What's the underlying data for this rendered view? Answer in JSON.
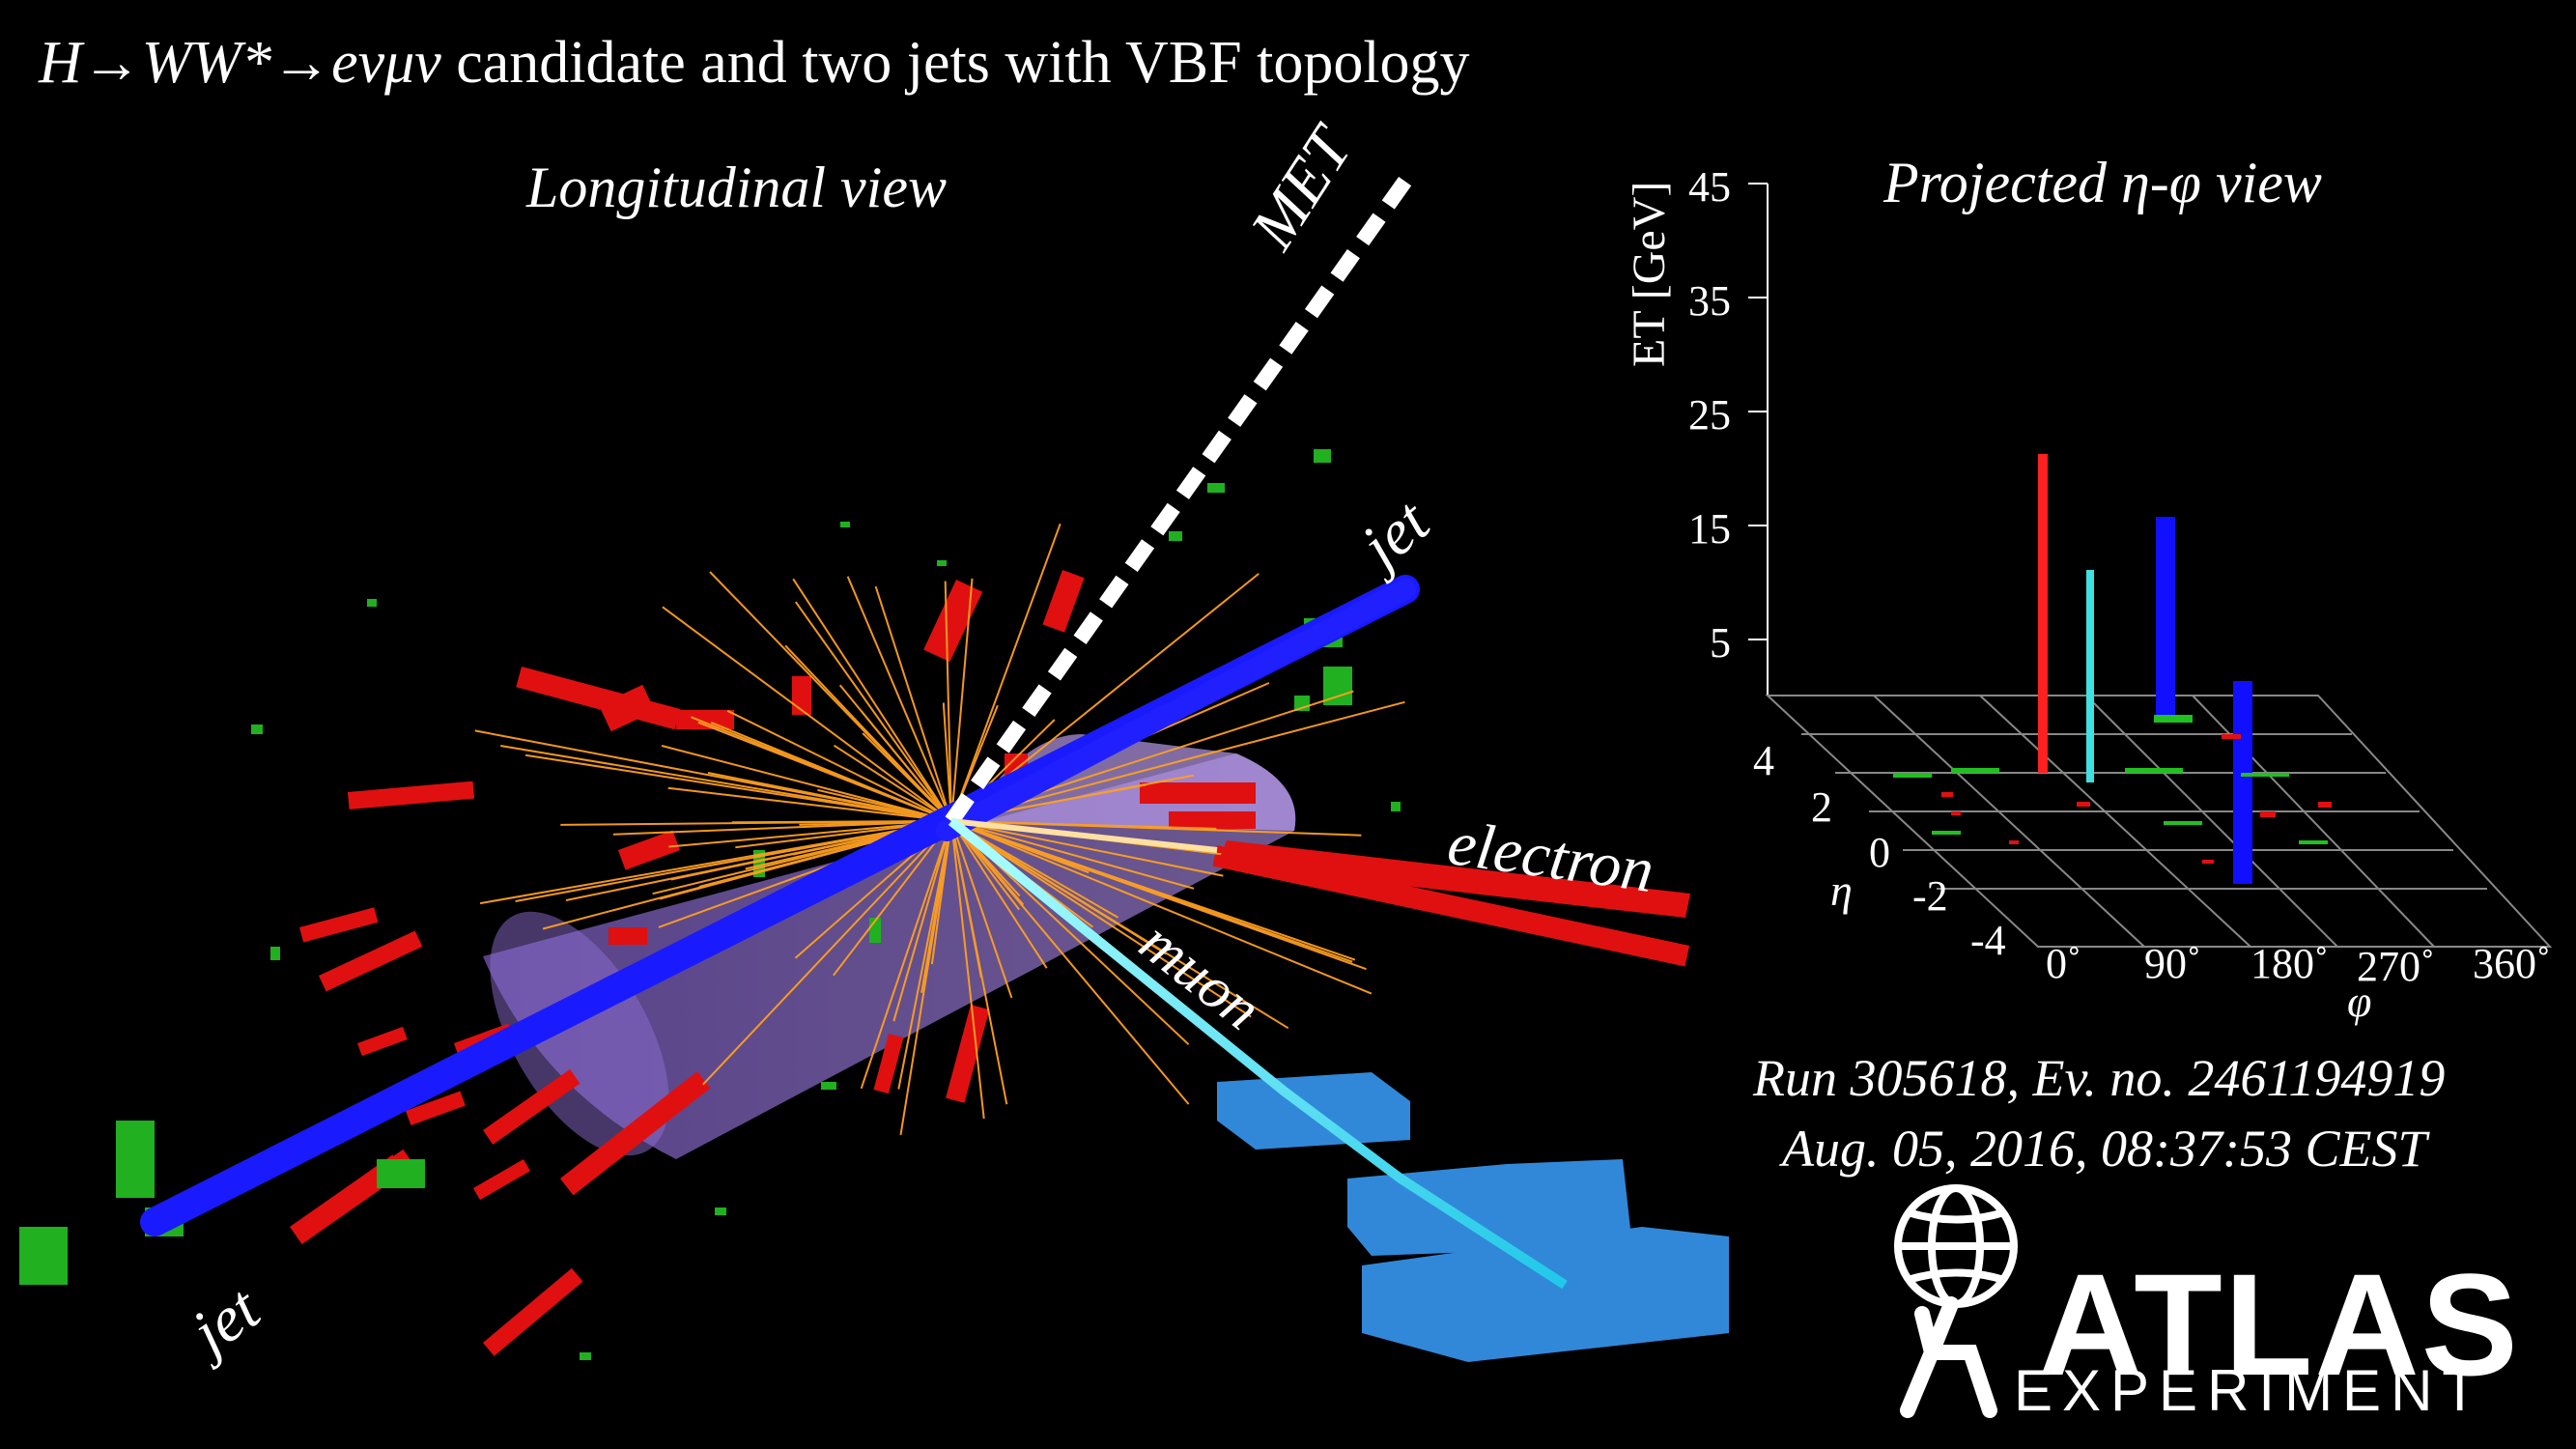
{
  "title": {
    "formula": "H→WW*→eνμν",
    "rest": " candidate and two jets with VBF topology"
  },
  "views": {
    "longitudinal": "Longitudinal view",
    "projected": "Projected  η-φ view"
  },
  "labels": {
    "met": "MET",
    "jet_top": "jet",
    "jet_bottom": "jet",
    "electron": "electron",
    "muon": "muon"
  },
  "lego_plot": {
    "y_axis_label": "ET [GeV]",
    "y_ticks": [
      "45",
      "35",
      "25",
      "15",
      "5"
    ],
    "eta_label": "η",
    "eta_ticks": [
      "4",
      "2",
      "0",
      "-2",
      "-4"
    ],
    "phi_label": "φ",
    "phi_ticks": [
      "0˚",
      "90˚",
      "180˚",
      "270˚",
      "360˚"
    ],
    "colors": {
      "electron": "#ff2020",
      "muon": "#40e0e0",
      "jet": "#1010ff",
      "cells_em": "#20c020",
      "cells_had": "#e01010"
    }
  },
  "event": {
    "run": "Run 305618, Ev. no. 2461194919",
    "date": "Aug. 05, 2016, 08:37:53 CEST"
  },
  "logo": {
    "name": "ATLAS",
    "sub": "EXPERIMENT"
  },
  "colors": {
    "background": "#000000",
    "tracks": "#ffa020",
    "jet": "#1a1aff",
    "calorimeter": "#9a7fd8",
    "muon_chamber": "#3aa0ff"
  }
}
